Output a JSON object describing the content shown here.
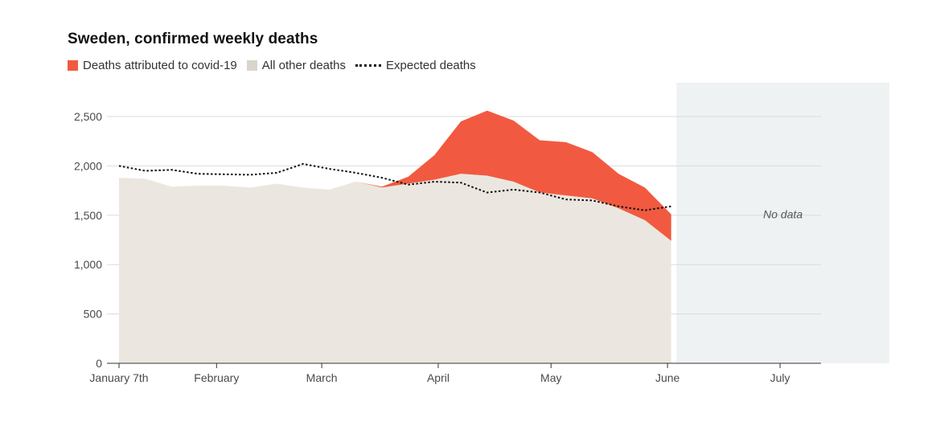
{
  "chart_data": {
    "type": "area",
    "title": "Sweden, confirmed weekly deaths",
    "legend": [
      {
        "key": "covid",
        "label": "Deaths attributed to covid-19",
        "color": "#f15a40"
      },
      {
        "key": "other",
        "label": "All other deaths",
        "color": "#d9d5cc"
      },
      {
        "key": "expected",
        "label": "Expected deaths",
        "color": "#111111"
      }
    ],
    "no_data_label": "No data",
    "weeks": [
      0,
      1,
      2,
      3,
      4,
      5,
      6,
      7,
      8,
      9,
      10,
      11,
      12,
      13,
      14,
      15,
      16,
      17,
      18,
      19,
      20,
      21
    ],
    "series": [
      {
        "name": "All other deaths",
        "values": [
          1880,
          1870,
          1790,
          1800,
          1800,
          1780,
          1820,
          1780,
          1760,
          1840,
          1780,
          1820,
          1860,
          1920,
          1900,
          1840,
          1730,
          1700,
          1670,
          1570,
          1450,
          1240
        ]
      },
      {
        "name": "Total deaths",
        "values": [
          1880,
          1870,
          1790,
          1800,
          1800,
          1780,
          1820,
          1780,
          1760,
          1840,
          1790,
          1890,
          2110,
          2450,
          2560,
          2460,
          2260,
          2240,
          2140,
          1920,
          1780,
          1510
        ]
      },
      {
        "name": "Expected deaths",
        "values": [
          2000,
          1950,
          1960,
          1920,
          1915,
          1910,
          1930,
          2020,
          1970,
          1930,
          1880,
          1810,
          1840,
          1830,
          1730,
          1760,
          1730,
          1660,
          1650,
          1590,
          1550,
          1590
        ]
      }
    ],
    "no_data_range_weeks": [
      21.2,
      29.3
    ],
    "x_ticks": [
      {
        "week": 0,
        "label": "January 7th"
      },
      {
        "week": 3.71,
        "label": "February"
      },
      {
        "week": 7.71,
        "label": "March"
      },
      {
        "week": 12.14,
        "label": "April"
      },
      {
        "week": 16.43,
        "label": "May"
      },
      {
        "week": 20.86,
        "label": "June"
      },
      {
        "week": 25.14,
        "label": "July"
      }
    ],
    "y_ticks": [
      {
        "value": 0,
        "label": "0"
      },
      {
        "value": 500,
        "label": "500"
      },
      {
        "value": 1000,
        "label": "1,000"
      },
      {
        "value": 1500,
        "label": "1,500"
      },
      {
        "value": 2000,
        "label": "2,000"
      },
      {
        "value": 2500,
        "label": "2,500"
      }
    ],
    "xlim": [
      0,
      27
    ],
    "ylim": [
      0,
      2500
    ]
  }
}
